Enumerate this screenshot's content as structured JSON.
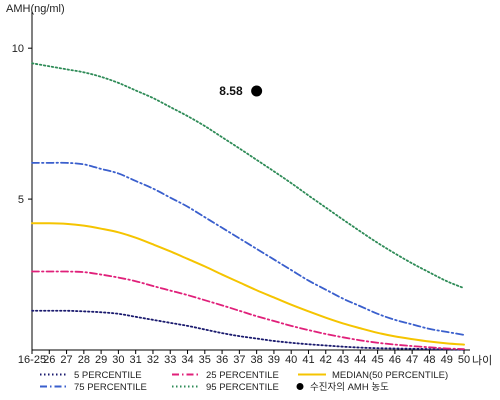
{
  "chart_data": {
    "type": "line",
    "ylabel": "AMH(ng/ml)",
    "xlabel": "나이",
    "categories": [
      "16-25",
      "26",
      "27",
      "28",
      "29",
      "30",
      "31",
      "32",
      "33",
      "34",
      "35",
      "36",
      "37",
      "38",
      "39",
      "40",
      "41",
      "42",
      "43",
      "44",
      "45",
      "46",
      "47",
      "48",
      "49",
      "50"
    ],
    "yticks": [
      5,
      10
    ],
    "ylim": [
      0,
      11
    ],
    "series": [
      {
        "name": "5 PERCENTILE",
        "color": "#1a1a6e",
        "dash": "dot",
        "values": [
          1.3,
          1.3,
          1.3,
          1.28,
          1.25,
          1.2,
          1.1,
          1.0,
          0.9,
          0.8,
          0.68,
          0.56,
          0.46,
          0.38,
          0.3,
          0.24,
          0.19,
          0.15,
          0.11,
          0.08,
          0.06,
          0.05,
          0.04,
          0.03,
          0.02,
          0.01
        ]
      },
      {
        "name": "75 PERCENTILE",
        "color": "#3a5fcd",
        "dash": "dashdot",
        "values": [
          6.2,
          6.2,
          6.2,
          6.15,
          6.0,
          5.85,
          5.6,
          5.35,
          5.05,
          4.75,
          4.4,
          4.05,
          3.7,
          3.35,
          3.0,
          2.65,
          2.3,
          2.0,
          1.7,
          1.45,
          1.2,
          1.0,
          0.85,
          0.7,
          0.6,
          0.5
        ]
      },
      {
        "name": "25 PERCENTILE",
        "color": "#e0207a",
        "dash": "dashdot",
        "values": [
          2.6,
          2.6,
          2.6,
          2.58,
          2.5,
          2.4,
          2.28,
          2.12,
          1.97,
          1.82,
          1.65,
          1.48,
          1.3,
          1.12,
          0.96,
          0.8,
          0.66,
          0.53,
          0.42,
          0.32,
          0.24,
          0.18,
          0.13,
          0.09,
          0.05,
          0.03
        ]
      },
      {
        "name": "95 PERCENTILE",
        "color": "#2e8b57",
        "dash": "dot",
        "values": [
          9.5,
          9.4,
          9.3,
          9.2,
          9.05,
          8.85,
          8.6,
          8.35,
          8.05,
          7.75,
          7.42,
          7.05,
          6.68,
          6.3,
          5.92,
          5.53,
          5.12,
          4.72,
          4.32,
          3.93,
          3.55,
          3.2,
          2.87,
          2.57,
          2.28,
          2.05
        ]
      },
      {
        "name": "MEDIAN(50 PERCENTILE)",
        "color": "#f5c400",
        "dash": "solid",
        "values": [
          4.2,
          4.2,
          4.18,
          4.12,
          4.02,
          3.9,
          3.72,
          3.5,
          3.27,
          3.02,
          2.77,
          2.5,
          2.24,
          1.98,
          1.74,
          1.5,
          1.28,
          1.07,
          0.88,
          0.72,
          0.57,
          0.45,
          0.36,
          0.28,
          0.22,
          0.18
        ]
      }
    ],
    "point": {
      "name": "수진자의 AMH 농도",
      "x": "38",
      "y": 8.58,
      "label": "8.58",
      "color": "#000000"
    },
    "legend": {
      "placement": "bottom",
      "items": [
        {
          "label": "5 PERCENTILE",
          "color": "#1a1a6e",
          "kind": "dot"
        },
        {
          "label": "25 PERCENTILE",
          "color": "#e0207a",
          "kind": "dashdot"
        },
        {
          "label": "MEDIAN(50 PERCENTILE)",
          "color": "#f5c400",
          "kind": "solid"
        },
        {
          "label": "75 PERCENTILE",
          "color": "#3a5fcd",
          "kind": "dashdot"
        },
        {
          "label": "95 PERCENTILE",
          "color": "#2e8b57",
          "kind": "dot"
        },
        {
          "label": "수진자의 AMH 농도",
          "color": "#000000",
          "kind": "marker"
        }
      ]
    }
  }
}
